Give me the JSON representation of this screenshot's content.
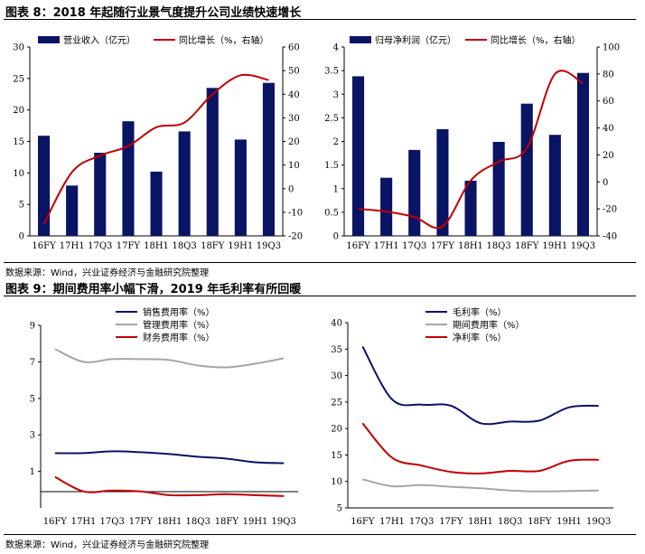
{
  "fig8": {
    "title": "图表 8：2018 年起随行业景气度提升公司业绩快速增长",
    "source": "数据来源：Wind，兴业证券经济与金融研究院整理"
  },
  "fig9": {
    "title": "图表 9：期间费用率小幅下滑，2019 年毛利率有所回暖",
    "source": "数据来源：Wind，兴业证券经济与金融研究院整理"
  },
  "chart_data": [
    {
      "type": "bar",
      "categories": [
        "16FY",
        "17H1",
        "17Q3",
        "17FY",
        "18H1",
        "18Q3",
        "18FY",
        "19H1",
        "19Q3"
      ],
      "series": [
        {
          "name": "营业收入（亿元）",
          "axis": "left",
          "kind": "bar",
          "values": [
            15.9,
            8.0,
            13.2,
            18.2,
            10.2,
            16.6,
            23.5,
            15.3,
            24.3
          ]
        },
        {
          "name": "同比增长（%，右轴）",
          "axis": "right",
          "kind": "line",
          "values": [
            -15,
            7,
            14,
            18,
            26,
            28,
            40,
            48,
            46
          ]
        }
      ],
      "yleft": {
        "min": 0,
        "max": 30,
        "ticks": [
          "0",
          "5",
          "10",
          "15",
          "20",
          "25",
          "30"
        ]
      },
      "yright": {
        "min": -20,
        "max": 60,
        "ticks": [
          "-20",
          "-10",
          "0",
          "10",
          "20",
          "30",
          "40",
          "50",
          "60"
        ]
      },
      "colors": {
        "bar": "#0a1464",
        "line": "#c00000"
      }
    },
    {
      "type": "bar",
      "categories": [
        "16FY",
        "17H1",
        "17Q3",
        "17FY",
        "18H1",
        "18Q3",
        "18FY",
        "19H1",
        "19Q3"
      ],
      "series": [
        {
          "name": "归母净利润（亿元）",
          "axis": "left",
          "kind": "bar",
          "values": [
            3.38,
            1.23,
            1.82,
            2.26,
            1.17,
            1.99,
            2.8,
            2.14,
            3.45
          ]
        },
        {
          "name": "同比增长（%，右轴）",
          "axis": "right",
          "kind": "line",
          "values": [
            -20,
            -22,
            -26,
            -33,
            1,
            15,
            25,
            80,
            73
          ]
        }
      ],
      "yleft": {
        "min": 0,
        "max": 4,
        "ticks": [
          "0",
          "0.5",
          "1",
          "1.5",
          "2",
          "2.5",
          "3",
          "3.5",
          "4"
        ]
      },
      "yright": {
        "min": -40,
        "max": 100,
        "ticks": [
          "-40",
          "-20",
          "0",
          "20",
          "40",
          "60",
          "80",
          "100"
        ]
      },
      "colors": {
        "bar": "#0a1464",
        "line": "#c00000"
      }
    },
    {
      "type": "line",
      "categories": [
        "16FY",
        "17H1",
        "17Q3",
        "17FY",
        "18H1",
        "18Q3",
        "18FY",
        "19H1",
        "19Q3"
      ],
      "series": [
        {
          "name": "销售费用率（%）",
          "values": [
            2.0,
            2.0,
            2.1,
            2.05,
            1.95,
            1.8,
            1.7,
            1.5,
            1.45
          ],
          "color": "#0a1464"
        },
        {
          "name": "管理费用率（%）",
          "values": [
            7.7,
            7.0,
            7.15,
            7.15,
            7.1,
            6.8,
            6.7,
            6.9,
            7.2
          ],
          "color": "#a6a6a6"
        },
        {
          "name": "财务费用率（%）",
          "values": [
            0.7,
            -0.1,
            -0.05,
            -0.1,
            -0.3,
            -0.3,
            -0.25,
            -0.3,
            -0.35
          ],
          "color": "#c00000"
        }
      ],
      "ylim": [
        -1,
        9
      ],
      "ticks": [
        "1",
        "3",
        "5",
        "7",
        "9"
      ]
    },
    {
      "type": "line",
      "categories": [
        "16FY",
        "17H1",
        "17Q3",
        "17FY",
        "18H1",
        "18Q3",
        "18FY",
        "19H1",
        "19Q3"
      ],
      "series": [
        {
          "name": "毛利率（%）",
          "values": [
            35.5,
            25.5,
            24.5,
            24.3,
            21.0,
            21.3,
            21.5,
            24.0,
            24.3
          ],
          "color": "#0a1464"
        },
        {
          "name": "期间费用率（%）",
          "values": [
            10.4,
            9.1,
            9.3,
            9.0,
            8.7,
            8.3,
            8.1,
            8.2,
            8.3
          ],
          "color": "#a6a6a6"
        },
        {
          "name": "净利率（%）",
          "values": [
            21.0,
            14.5,
            13.0,
            11.8,
            11.5,
            12.0,
            12.0,
            13.9,
            14.1
          ],
          "color": "#c00000"
        }
      ],
      "ylim": [
        5,
        40
      ],
      "ticks": [
        "5",
        "10",
        "15",
        "20",
        "25",
        "30",
        "35",
        "40"
      ]
    }
  ]
}
